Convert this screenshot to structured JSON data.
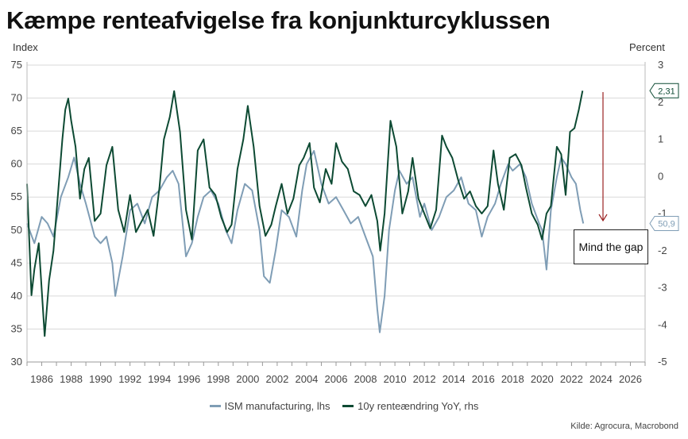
{
  "title": "Kæmpe renteafvigelse fra konjunkturcyklussen",
  "left_unit": "Index",
  "right_unit": "Percent",
  "source": "Kilde: Agrocura, Macrobond",
  "annotation": "Mind the gap",
  "colors": {
    "ism": "#7f9db5",
    "rate": "#0d4a33",
    "arrow": "#9b2222",
    "grid": "#d9d9d9"
  },
  "chart_data": {
    "type": "line",
    "y_left": {
      "lim": [
        30,
        75
      ],
      "ticks": [
        30,
        35,
        40,
        45,
        50,
        55,
        60,
        65,
        70,
        75
      ]
    },
    "y_right": {
      "lim": [
        -5,
        3
      ],
      "ticks": [
        -5,
        -4,
        -3,
        -2,
        -1,
        0,
        1,
        2,
        3
      ]
    },
    "x": {
      "lim": [
        1985,
        2027
      ],
      "ticks": [
        1986,
        1988,
        1990,
        1992,
        1994,
        1996,
        1998,
        2000,
        2002,
        2004,
        2006,
        2008,
        2010,
        2012,
        2014,
        2016,
        2018,
        2020,
        2022,
        2024,
        2026
      ]
    },
    "grid": true,
    "legend_position": "bottom",
    "end_labels": {
      "ism": "50,9",
      "rate": "2,31"
    },
    "series": [
      {
        "name": "ISM manufacturing, lhs",
        "axis": "left",
        "x": [
          1985.0,
          1985.5,
          1986.0,
          1986.4,
          1986.8,
          1987.3,
          1987.8,
          1988.2,
          1988.6,
          1989.0,
          1989.6,
          1990.0,
          1990.4,
          1990.8,
          1991.0,
          1991.5,
          1992.0,
          1992.5,
          1993.0,
          1993.5,
          1994.0,
          1994.5,
          1994.9,
          1995.3,
          1995.8,
          1996.2,
          1996.6,
          1997.0,
          1997.5,
          1998.0,
          1998.5,
          1998.9,
          1999.3,
          1999.8,
          2000.3,
          2000.8,
          2001.1,
          2001.5,
          2001.9,
          2002.3,
          2002.8,
          2003.3,
          2003.7,
          2004.0,
          2004.5,
          2005.0,
          2005.5,
          2006.0,
          2006.5,
          2007.0,
          2007.5,
          2008.0,
          2008.5,
          2008.8,
          2008.97,
          2009.3,
          2009.6,
          2010.0,
          2010.3,
          2010.8,
          2011.2,
          2011.7,
          2012.0,
          2012.5,
          2013.0,
          2013.5,
          2014.0,
          2014.5,
          2015.0,
          2015.5,
          2015.9,
          2016.3,
          2016.8,
          2017.2,
          2017.7,
          2018.0,
          2018.5,
          2018.9,
          2019.3,
          2019.8,
          2020.0,
          2020.3,
          2020.6,
          2021.0,
          2021.3,
          2021.6,
          2022.0,
          2022.3,
          2022.6,
          2022.8
        ],
        "values": [
          51,
          48,
          52,
          51,
          49,
          55,
          58,
          61,
          57,
          54,
          49,
          48,
          49,
          45,
          40,
          46,
          53,
          54,
          51,
          55,
          56,
          58,
          59,
          57,
          46,
          48,
          52,
          55,
          56,
          54,
          50,
          48,
          53,
          57,
          56,
          50,
          43,
          42,
          47,
          53,
          52,
          49,
          56,
          60,
          62,
          57,
          54,
          55,
          53,
          51,
          52,
          49,
          46,
          38,
          34.5,
          40,
          50,
          56,
          59,
          57,
          58,
          52,
          54,
          50,
          52,
          55,
          56,
          58,
          54,
          53,
          49,
          52,
          54,
          57,
          60,
          59,
          60,
          58,
          54,
          51,
          50,
          44,
          53,
          58,
          61,
          60,
          58,
          57,
          53,
          51
        ]
      },
      {
        "name": "10y renteændring YoY, rhs",
        "axis": "right",
        "x": [
          1985.0,
          1985.3,
          1985.5,
          1985.8,
          1986.2,
          1986.5,
          1986.8,
          1987.1,
          1987.4,
          1987.6,
          1987.8,
          1988.0,
          1988.3,
          1988.6,
          1988.9,
          1989.2,
          1989.6,
          1990.0,
          1990.4,
          1990.8,
          1991.2,
          1991.6,
          1992.0,
          1992.4,
          1992.8,
          1993.2,
          1993.6,
          1994.0,
          1994.3,
          1994.7,
          1995.0,
          1995.4,
          1995.8,
          1996.2,
          1996.6,
          1997.0,
          1997.4,
          1997.8,
          1998.2,
          1998.6,
          1998.9,
          1999.3,
          1999.7,
          2000.0,
          2000.4,
          2000.8,
          2001.2,
          2001.6,
          2001.9,
          2002.3,
          2002.7,
          2003.1,
          2003.5,
          2003.8,
          2004.2,
          2004.5,
          2004.9,
          2005.3,
          2005.7,
          2006.0,
          2006.4,
          2006.8,
          2007.2,
          2007.6,
          2008.0,
          2008.4,
          2008.8,
          2009.0,
          2009.3,
          2009.7,
          2010.1,
          2010.5,
          2010.9,
          2011.2,
          2011.6,
          2012.0,
          2012.4,
          2012.8,
          2013.2,
          2013.5,
          2013.9,
          2014.3,
          2014.7,
          2015.1,
          2015.5,
          2015.9,
          2016.3,
          2016.7,
          2017.0,
          2017.4,
          2017.8,
          2018.2,
          2018.6,
          2018.9,
          2019.3,
          2019.7,
          2020.0,
          2020.3,
          2020.6,
          2021.0,
          2021.3,
          2021.6,
          2021.9,
          2022.2,
          2022.5,
          2022.75
        ],
        "values": [
          -0.2,
          -3.2,
          -2.5,
          -1.8,
          -4.3,
          -2.8,
          -2.0,
          -0.5,
          1.0,
          1.8,
          2.1,
          1.5,
          0.8,
          -0.6,
          0.2,
          0.5,
          -1.2,
          -1.0,
          0.3,
          0.8,
          -0.9,
          -1.5,
          -0.5,
          -1.5,
          -1.2,
          -0.9,
          -1.6,
          -0.3,
          1.0,
          1.6,
          2.3,
          1.2,
          -0.9,
          -1.7,
          0.7,
          1.0,
          -0.3,
          -0.5,
          -1.1,
          -1.5,
          -1.3,
          0.2,
          1.0,
          1.9,
          0.8,
          -0.8,
          -1.6,
          -1.3,
          -0.8,
          -0.2,
          -1.0,
          -0.6,
          0.3,
          0.5,
          0.9,
          -0.3,
          -0.7,
          0.2,
          -0.2,
          0.9,
          0.4,
          0.2,
          -0.4,
          -0.5,
          -0.8,
          -0.5,
          -1.2,
          -2.0,
          -1.0,
          1.5,
          0.8,
          -1.0,
          -0.4,
          0.5,
          -0.6,
          -1.0,
          -1.4,
          -0.9,
          1.1,
          0.8,
          0.5,
          -0.1,
          -0.6,
          -0.4,
          -0.8,
          -1.0,
          -0.8,
          0.7,
          -0.2,
          -0.9,
          0.5,
          0.6,
          0.3,
          -0.3,
          -1.0,
          -1.3,
          -1.7,
          -1.0,
          -0.8,
          0.8,
          0.6,
          -0.5,
          1.2,
          1.3,
          1.8,
          2.31
        ]
      }
    ]
  }
}
